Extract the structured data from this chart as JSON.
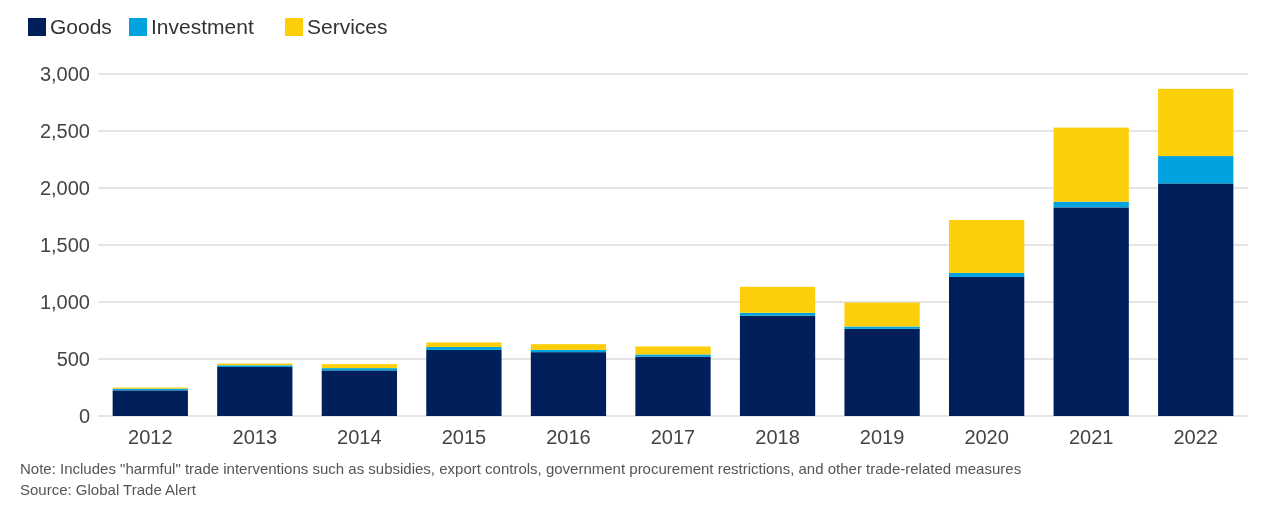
{
  "chart_data": {
    "type": "bar",
    "stacked": true,
    "categories": [
      "2012",
      "2013",
      "2014",
      "2015",
      "2016",
      "2017",
      "2018",
      "2019",
      "2020",
      "2021",
      "2022"
    ],
    "series": [
      {
        "name": "Goods",
        "color": "#001f5b",
        "values": [
          225,
          430,
          400,
          580,
          560,
          520,
          880,
          765,
          1220,
          1830,
          2040
        ]
      },
      {
        "name": "Investment",
        "color": "#00a3e0",
        "values": [
          15,
          15,
          20,
          25,
          20,
          20,
          25,
          20,
          35,
          50,
          240
        ]
      },
      {
        "name": "Services",
        "color": "#fccf0a",
        "values": [
          10,
          15,
          35,
          40,
          50,
          70,
          228,
          210,
          465,
          650,
          590
        ]
      }
    ],
    "ylim": [
      0,
      3000
    ],
    "yticks": [
      {
        "value": 0,
        "label": "0"
      },
      {
        "value": 500,
        "label": "500"
      },
      {
        "value": 1000,
        "label": "1,000"
      },
      {
        "value": 1500,
        "label": "1,500"
      },
      {
        "value": 2000,
        "label": "2,000"
      },
      {
        "value": 2500,
        "label": "2,500"
      },
      {
        "value": 3000,
        "label": "3,000"
      }
    ],
    "grid": "y",
    "legend": "top left",
    "annotations": [
      "Note: Includes \"harmful\" trade interventions such as subsidies, export controls, government procurement restrictions, and other trade-related measures",
      "Source: Global Trade Alert"
    ]
  }
}
